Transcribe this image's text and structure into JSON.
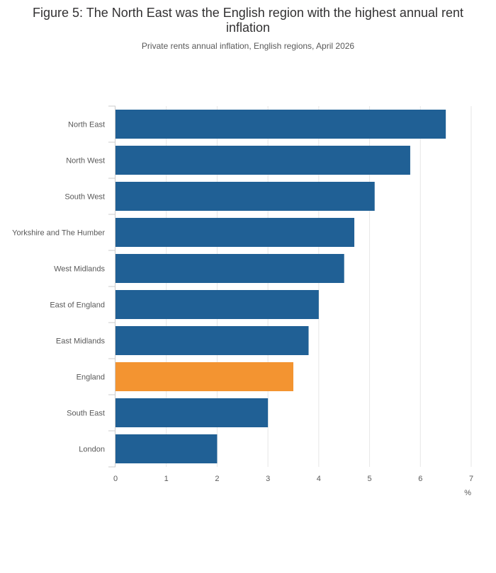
{
  "chart_data": {
    "type": "bar",
    "orientation": "horizontal",
    "title": "Figure 5: The North East was the English region with the highest annual rent inflation",
    "subtitle": "Private rents annual inflation, English regions, April 2026",
    "categories": [
      "North East",
      "North West",
      "South West",
      "Yorkshire and The Humber",
      "West Midlands",
      "East of England",
      "East Midlands",
      "England",
      "South East",
      "London"
    ],
    "values": [
      6.5,
      5.8,
      5.1,
      4.7,
      4.5,
      4.0,
      3.8,
      3.5,
      3.0,
      2.0
    ],
    "highlight": "England",
    "xlabel": "%",
    "ylabel": "",
    "xlim": [
      0,
      7
    ],
    "xticks": [
      0,
      1,
      2,
      3,
      4,
      5,
      6,
      7
    ],
    "grid": true,
    "legend": "none",
    "colors": {
      "bar": "#206095",
      "highlight": "#F39431",
      "grid": "#e6e6e6",
      "axis": "#cccccc"
    }
  }
}
